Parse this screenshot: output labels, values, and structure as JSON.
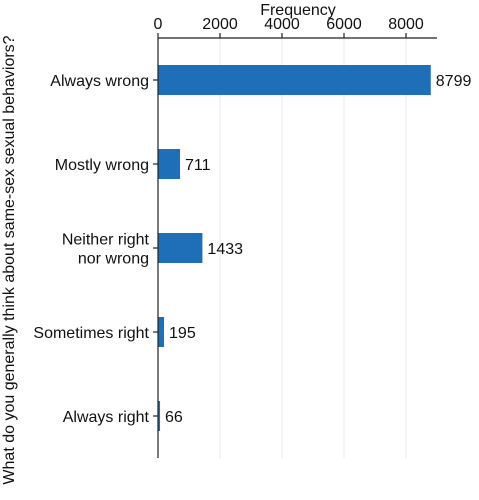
{
  "chart_data": {
    "type": "bar",
    "orientation": "horizontal",
    "title": "",
    "xlabel": "Frequency",
    "ylabel": "What do you generally think about same-sex sexual behaviors?",
    "xaxis_position": "top",
    "xlim": [
      0,
      9000
    ],
    "xticks": [
      0,
      2000,
      4000,
      6000,
      8000
    ],
    "xtick_labels": [
      "0",
      "2000",
      "4000",
      "6000",
      "8000"
    ],
    "grid": "vertical",
    "categories": [
      [
        "Always wrong"
      ],
      [
        "Mostly wrong"
      ],
      [
        "Neither right",
        "nor wrong"
      ],
      [
        "Sometimes right"
      ],
      [
        "Always right"
      ]
    ],
    "values": [
      8799,
      711,
      1433,
      195,
      66
    ],
    "value_labels": [
      "8799",
      "711",
      "1433",
      "195",
      "66"
    ],
    "bar_color": "#1f6fb8",
    "grid_color": "#e8e8e8"
  }
}
